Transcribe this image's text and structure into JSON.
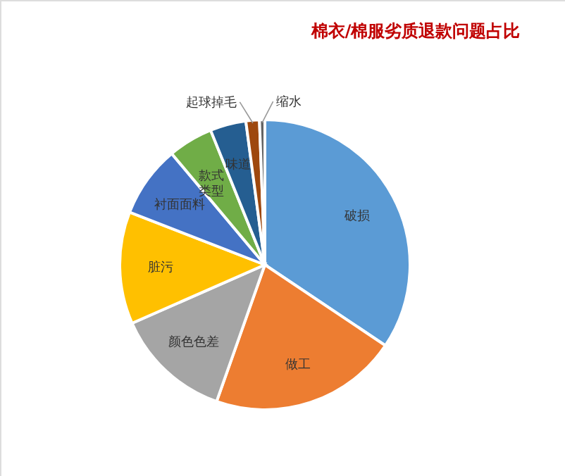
{
  "chart_data": {
    "type": "pie",
    "title": "棉衣/棉服劣质退款问题占比",
    "categories": [
      "破损",
      "做工",
      "颜色色差",
      "脏污",
      "衬面面料",
      "款式类型",
      "味道",
      "起球掉毛",
      "缩水"
    ],
    "values": [
      34.4,
      21,
      13,
      12.5,
      8,
      5,
      4,
      1.5,
      0.6
    ],
    "colors": [
      "#5b9bd5",
      "#ed7d31",
      "#a5a5a5",
      "#ffc000",
      "#4472c4",
      "#70ad47",
      "#255e91",
      "#9e480e",
      "#636363"
    ]
  }
}
